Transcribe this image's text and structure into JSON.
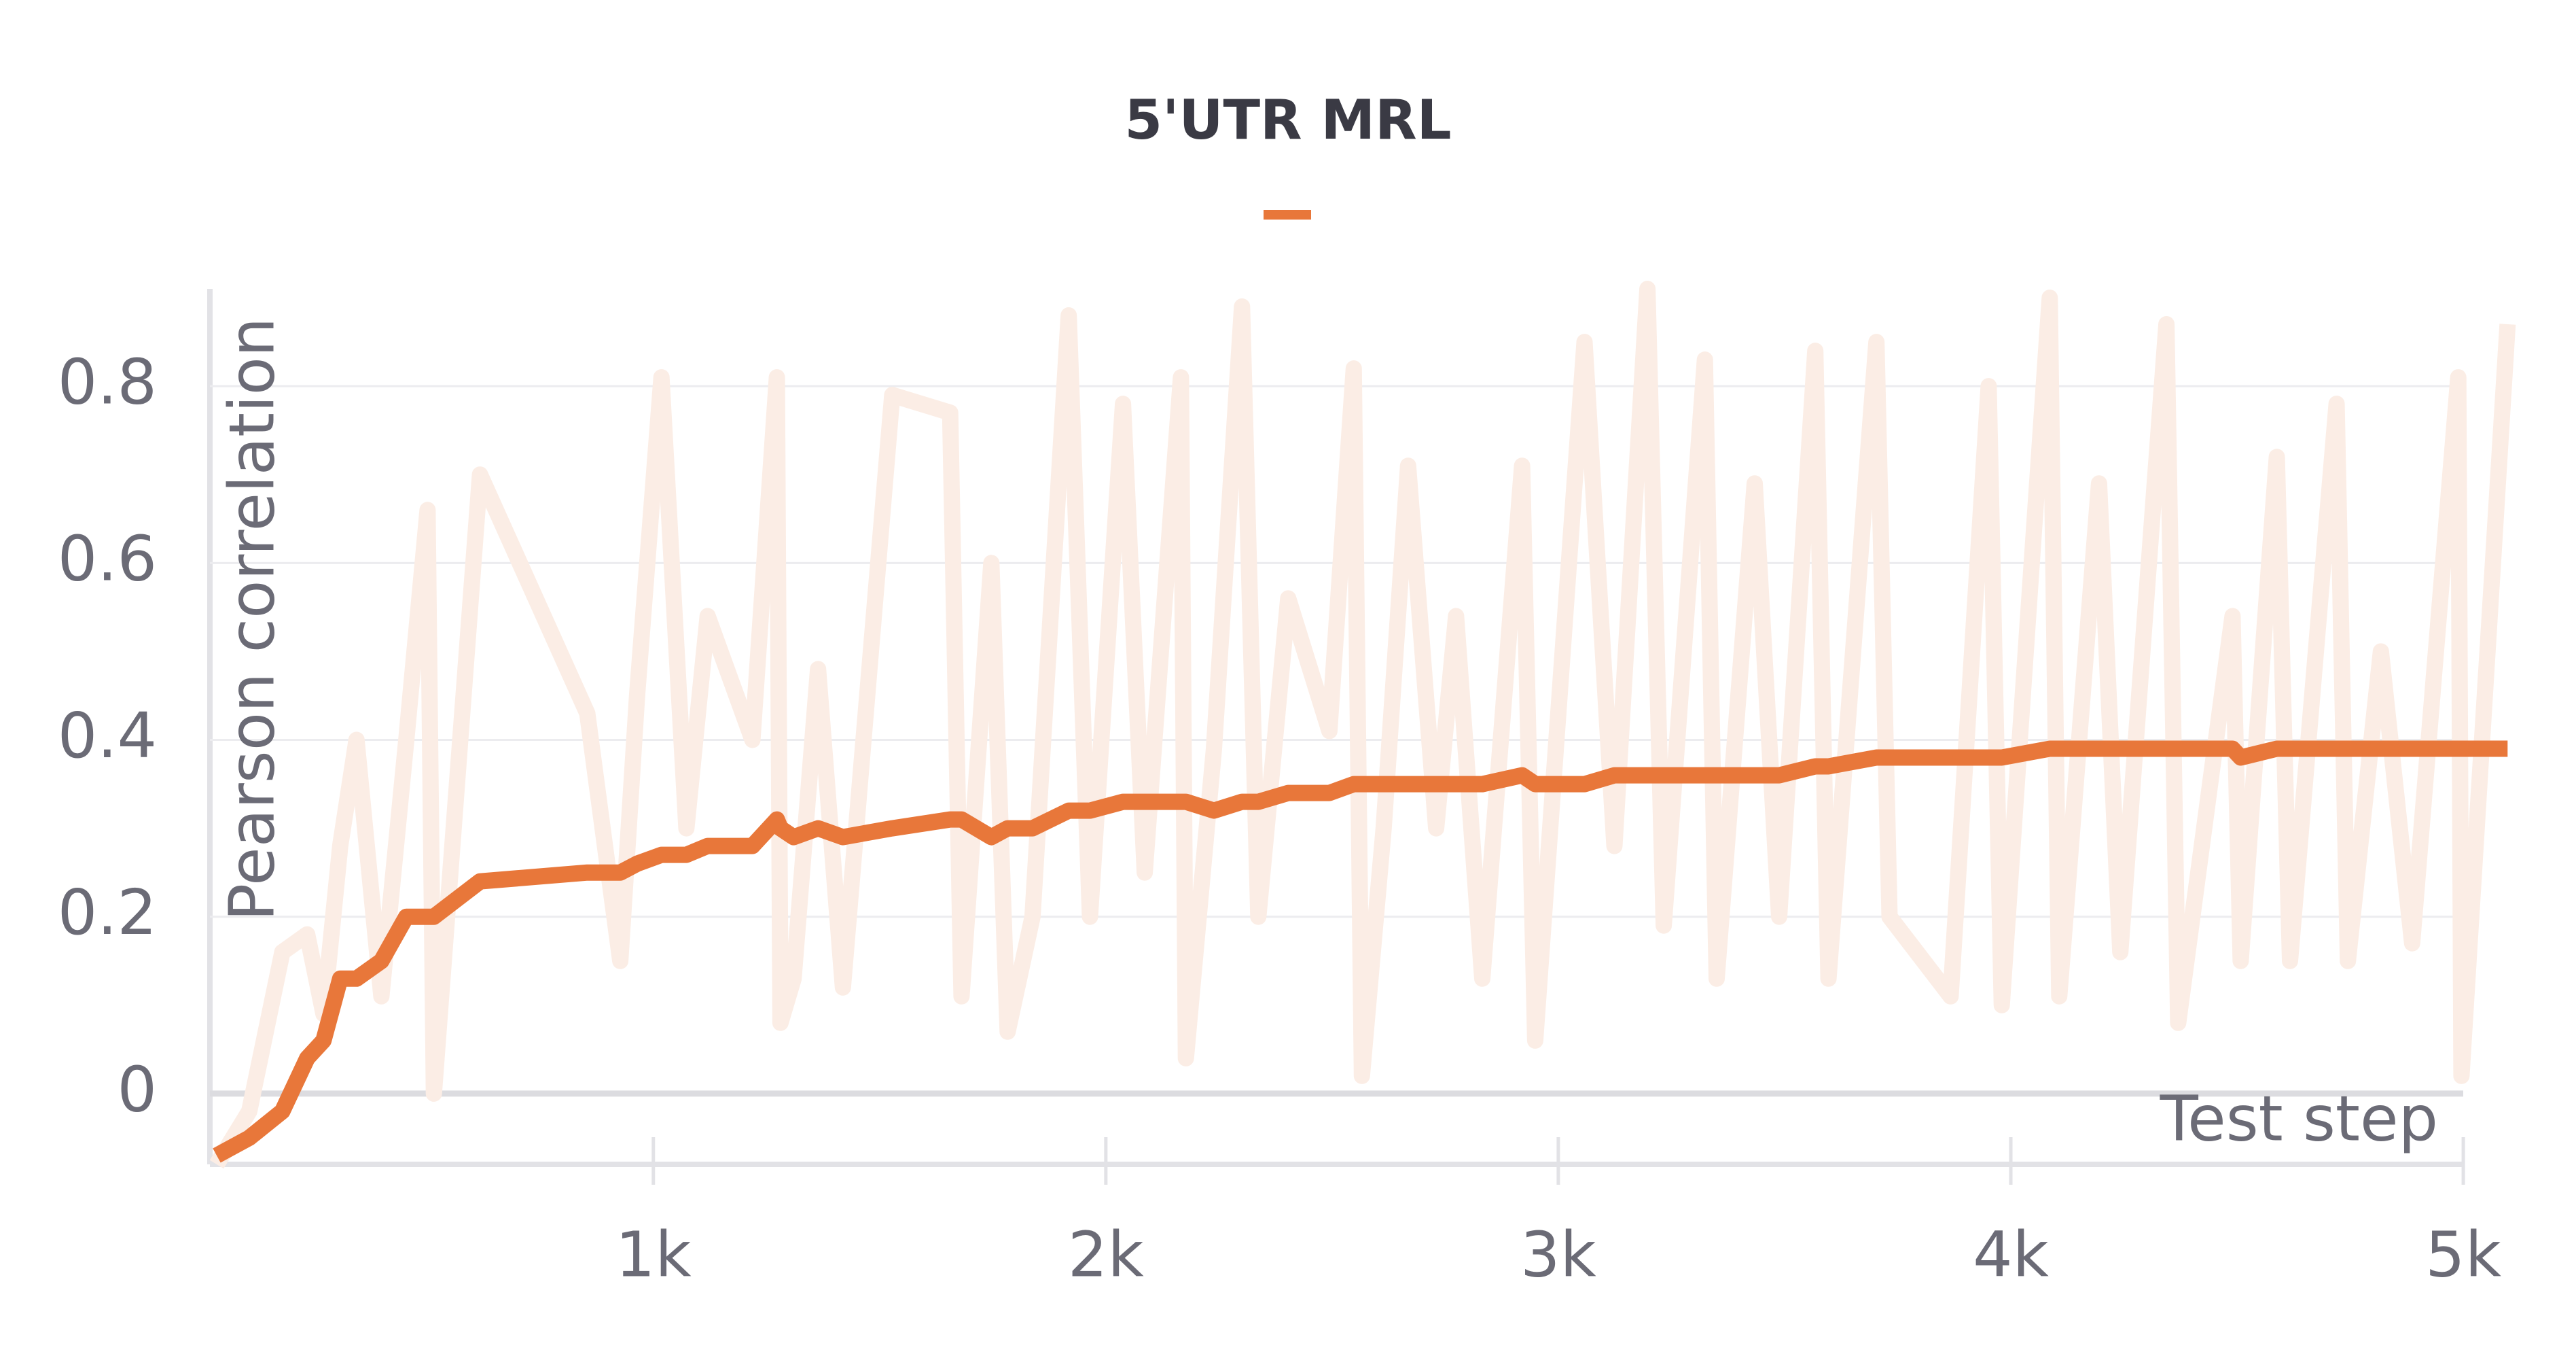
{
  "chart_data": {
    "type": "line",
    "title": "5'UTR MRL",
    "xlabel": "Test step",
    "ylabel": "Pearson correlation",
    "xlim": [
      20,
      5120
    ],
    "ylim": [
      -0.08,
      0.91
    ],
    "xticks": [
      {
        "value": 1000,
        "label": "1k"
      },
      {
        "value": 2000,
        "label": "2k"
      },
      {
        "value": 3000,
        "label": "3k"
      },
      {
        "value": 4000,
        "label": "4k"
      },
      {
        "value": 5000,
        "label": "5k"
      }
    ],
    "yticks": [
      0,
      0.2,
      0.4,
      0.6,
      0.8
    ],
    "grid": true,
    "x": [
      35,
      107,
      180,
      235,
      271,
      308,
      344,
      399,
      454,
      501,
      515,
      617,
      854,
      927,
      964,
      1018,
      1073,
      1120,
      1219,
      1273,
      1281,
      1310,
      1364,
      1419,
      1528,
      1656,
      1681,
      1747,
      1783,
      1838,
      1918,
      1965,
      2038,
      2086,
      2166,
      2177,
      2239,
      2301,
      2337,
      2403,
      2494,
      2548,
      2566,
      2614,
      2668,
      2730,
      2774,
      2832,
      2920,
      2949,
      3058,
      3124,
      3197,
      3233,
      3324,
      3350,
      3434,
      3488,
      3568,
      3597,
      3703,
      3732,
      3867,
      3951,
      3980,
      4086,
      4107,
      4195,
      4242,
      4344,
      4370,
      4490,
      4508,
      4588,
      4617,
      4720,
      4745,
      4818,
      4887,
      4989,
      4996,
      5098
    ],
    "series": [
      {
        "color": "#fbede5",
        "values": [
          -0.08,
          -0.02,
          0.16,
          0.18,
          0.09,
          0.28,
          0.4,
          0.11,
          0.4,
          0.66,
          0,
          0.7,
          0.43,
          0.15,
          0.45,
          0.81,
          0.3,
          0.54,
          0.4,
          0.81,
          0.08,
          0.13,
          0.48,
          0.12,
          0.79,
          0.77,
          0.11,
          0.6,
          0.07,
          0.2,
          0.88,
          0.2,
          0.78,
          0.25,
          0.81,
          0.04,
          0.39,
          0.89,
          0.2,
          0.56,
          0.41,
          0.82,
          0.02,
          0.3,
          0.71,
          0.3,
          0.54,
          0.13,
          0.71,
          0.06,
          0.85,
          0.28,
          0.91,
          0.19,
          0.83,
          0.13,
          0.69,
          0.2,
          0.84,
          0.13,
          0.85,
          0.2,
          0.11,
          0.8,
          0.1,
          0.9,
          0.11,
          0.69,
          0.16,
          0.87,
          0.08,
          0.54,
          0.15,
          0.72,
          0.15,
          0.78,
          0.15,
          0.5,
          0.17,
          0.81,
          0.02,
          0.87
        ]
      },
      {
        "color": "#e8773a",
        "values": [
          -0.07,
          -0.05,
          -0.02,
          0.04,
          0.06,
          0.13,
          0.13,
          0.15,
          0.2,
          0.2,
          0.2,
          0.24,
          0.25,
          0.25,
          0.26,
          0.27,
          0.27,
          0.28,
          0.28,
          0.31,
          0.3,
          0.29,
          0.3,
          0.29,
          0.3,
          0.31,
          0.31,
          0.29,
          0.3,
          0.3,
          0.32,
          0.32,
          0.33,
          0.33,
          0.33,
          0.33,
          0.32,
          0.33,
          0.33,
          0.34,
          0.34,
          0.35,
          0.35,
          0.35,
          0.35,
          0.35,
          0.35,
          0.35,
          0.36,
          0.35,
          0.35,
          0.36,
          0.36,
          0.36,
          0.36,
          0.36,
          0.36,
          0.36,
          0.37,
          0.37,
          0.38,
          0.38,
          0.38,
          0.38,
          0.38,
          0.39,
          0.39,
          0.39,
          0.39,
          0.39,
          0.39,
          0.39,
          0.38,
          0.39,
          0.39,
          0.39,
          0.39,
          0.39,
          0.39,
          0.39,
          0.39,
          0.39
        ]
      }
    ]
  }
}
